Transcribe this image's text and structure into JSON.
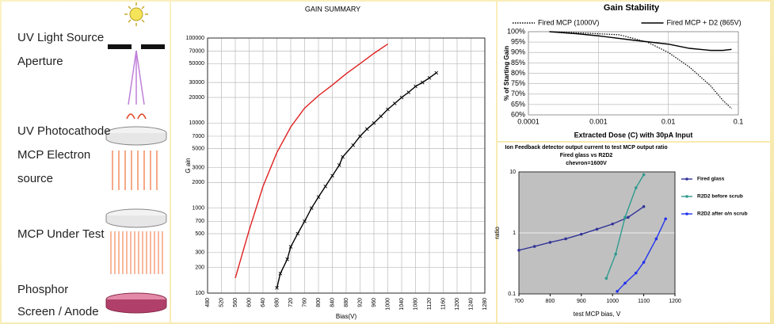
{
  "diagram": {
    "labels": [
      "UV Light Source",
      "Aperture",
      "UV Photocathode",
      "MCP Electron",
      "source",
      "MCP Under Test",
      "Phosphor",
      "Screen / Anode"
    ]
  },
  "chart_data": [
    {
      "type": "line",
      "title": "GAIN SUMMARY",
      "x_label": "Bias(V)",
      "y_label": "G ain",
      "ylog": true,
      "grid": true,
      "xlim": [
        480,
        1280
      ],
      "ylim": [
        100,
        100000
      ],
      "xticks": [
        480,
        520,
        560,
        600,
        640,
        680,
        720,
        760,
        800,
        840,
        880,
        920,
        960,
        1000,
        1040,
        1080,
        1120,
        1160,
        1200,
        1240,
        1280
      ],
      "yticks": [
        100,
        200,
        300,
        500,
        700,
        1000,
        2000,
        3000,
        5000,
        7000,
        10000,
        20000,
        30000,
        50000,
        70000,
        100000
      ],
      "series": [
        {
          "color": "#e02020",
          "x": [
            560,
            600,
            640,
            680,
            720,
            760,
            800,
            840,
            880,
            920,
            960,
            1000
          ],
          "values": [
            150,
            550,
            1800,
            4500,
            9000,
            15000,
            21000,
            28000,
            38000,
            50000,
            66000,
            85000
          ]
        },
        {
          "color": "#000000",
          "marker": "x",
          "x": [
            680,
            690,
            710,
            720,
            740,
            760,
            780,
            800,
            820,
            840,
            860,
            870,
            900,
            920,
            940,
            960,
            980,
            1000,
            1020,
            1040,
            1060,
            1080,
            1100,
            1120,
            1140
          ],
          "values": [
            115,
            170,
            250,
            350,
            500,
            700,
            1000,
            1350,
            1800,
            2400,
            3200,
            4000,
            5500,
            7000,
            8500,
            10000,
            12000,
            14500,
            17000,
            20000,
            23000,
            27000,
            30000,
            34000,
            39000
          ]
        }
      ]
    },
    {
      "type": "line",
      "title": "Gain Stability",
      "x_label": "Extracted Dose (C) with 30pA Input",
      "y_label": "% of Starting Gain",
      "xlog": true,
      "grid": true,
      "legend": "top",
      "xlim": [
        0.0001,
        0.1
      ],
      "ylim": [
        60,
        100
      ],
      "xticks": [
        0.0001,
        0.001,
        0.01,
        0.1
      ],
      "yticks": [
        {
          "value": 60,
          "label": "60%"
        },
        {
          "value": 65,
          "label": "65%"
        },
        {
          "value": 70,
          "label": "70%"
        },
        {
          "value": 75,
          "label": "75%"
        },
        {
          "value": 80,
          "label": "80%"
        },
        {
          "value": 85,
          "label": "85%"
        },
        {
          "value": 90,
          "label": "90%"
        },
        {
          "value": 95,
          "label": "95%"
        },
        {
          "value": 100,
          "label": "100%"
        }
      ],
      "series": [
        {
          "name": "Fired MCP (1000V)",
          "color": "#000000",
          "dash": "dotted",
          "x": [
            0.0002,
            0.0005,
            0.001,
            0.002,
            0.005,
            0.01,
            0.02,
            0.04,
            0.06,
            0.08
          ],
          "values": [
            100,
            99.5,
            99,
            98.5,
            95,
            90,
            83,
            74,
            67,
            63
          ]
        },
        {
          "name": "Fired MCP + D2 (865V)",
          "color": "#000000",
          "x": [
            0.0002,
            0.0005,
            0.001,
            0.003,
            0.01,
            0.02,
            0.04,
            0.06,
            0.08
          ],
          "values": [
            100,
            99,
            98,
            96,
            94,
            92,
            91,
            91,
            91.5
          ]
        }
      ]
    },
    {
      "type": "line",
      "title": [
        "Ion Feedback detector output current to test MCP output ratio",
        "Fired glass vs R2D2",
        "chevron=1600V"
      ],
      "x_label": "test MCP bias, V",
      "y_label": "ratio",
      "ylog": true,
      "grid": true,
      "legend": "right",
      "background": "#c0c0c0",
      "xlim": [
        700,
        1200
      ],
      "ylim": [
        0.1,
        10
      ],
      "xticks": [
        700,
        800,
        900,
        1000,
        1100,
        1200
      ],
      "yticks": [
        0.1,
        1,
        10
      ],
      "series": [
        {
          "name": "Fired glass",
          "color": "#333399",
          "marker": "circle",
          "x": [
            700,
            750,
            800,
            850,
            900,
            950,
            1000,
            1050,
            1100
          ],
          "values": [
            0.52,
            0.6,
            0.7,
            0.8,
            0.95,
            1.15,
            1.4,
            1.8,
            2.7
          ]
        },
        {
          "name": "R2D2 before scrub",
          "color": "#2e9a8e",
          "marker": "circle",
          "x": [
            980,
            1010,
            1040,
            1075,
            1100
          ],
          "values": [
            0.18,
            0.45,
            1.8,
            5.5,
            9
          ]
        },
        {
          "name": "R2D2 after o/n scrub",
          "color": "#2233ee",
          "marker": "circle",
          "x": [
            1015,
            1040,
            1075,
            1100,
            1140,
            1170
          ],
          "values": [
            0.11,
            0.15,
            0.22,
            0.33,
            0.8,
            1.7
          ]
        }
      ]
    }
  ]
}
